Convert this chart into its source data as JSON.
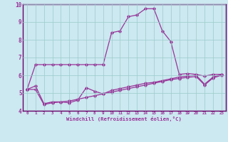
{
  "xlabel": "Windchill (Refroidissement éolien,°C)",
  "background_color": "#cce8f0",
  "grid_color": "#99cccc",
  "line_color": "#993399",
  "spine_color": "#660066",
  "xlim": [
    -0.5,
    23.5
  ],
  "ylim": [
    4,
    10
  ],
  "yticks": [
    4,
    5,
    6,
    7,
    8,
    9,
    10
  ],
  "xticks": [
    0,
    1,
    2,
    3,
    4,
    5,
    6,
    7,
    8,
    9,
    10,
    11,
    12,
    13,
    14,
    15,
    16,
    17,
    18,
    19,
    20,
    21,
    22,
    23
  ],
  "series1_x": [
    0,
    1,
    2,
    3,
    4,
    5,
    6,
    7,
    8,
    9,
    10,
    11,
    12,
    13,
    14,
    15,
    16,
    17,
    18,
    19,
    20,
    21,
    22,
    23
  ],
  "series1_y": [
    5.2,
    6.6,
    6.6,
    6.6,
    6.6,
    6.6,
    6.6,
    6.6,
    6.6,
    6.6,
    8.4,
    8.5,
    9.3,
    9.4,
    9.75,
    9.75,
    8.5,
    7.9,
    6.05,
    6.1,
    6.05,
    5.95,
    6.05,
    6.05
  ],
  "series2_x": [
    0,
    1,
    2,
    3,
    4,
    5,
    6,
    7,
    8,
    9,
    10,
    11,
    12,
    13,
    14,
    15,
    16,
    17,
    18,
    19,
    20,
    21,
    22,
    23
  ],
  "series2_y": [
    5.2,
    5.4,
    4.4,
    4.5,
    4.5,
    4.45,
    4.6,
    5.3,
    5.1,
    4.95,
    5.15,
    5.25,
    5.35,
    5.45,
    5.55,
    5.6,
    5.7,
    5.8,
    5.9,
    5.95,
    6.0,
    5.5,
    5.9,
    6.05
  ],
  "series3_x": [
    0,
    1,
    2,
    3,
    4,
    5,
    6,
    7,
    8,
    9,
    10,
    11,
    12,
    13,
    14,
    15,
    16,
    17,
    18,
    19,
    20,
    21,
    22,
    23
  ],
  "series3_y": [
    5.2,
    5.2,
    4.35,
    4.45,
    4.5,
    4.55,
    4.65,
    4.75,
    4.85,
    4.95,
    5.05,
    5.15,
    5.25,
    5.35,
    5.45,
    5.55,
    5.65,
    5.75,
    5.82,
    5.88,
    5.93,
    5.45,
    5.85,
    6.0
  ]
}
